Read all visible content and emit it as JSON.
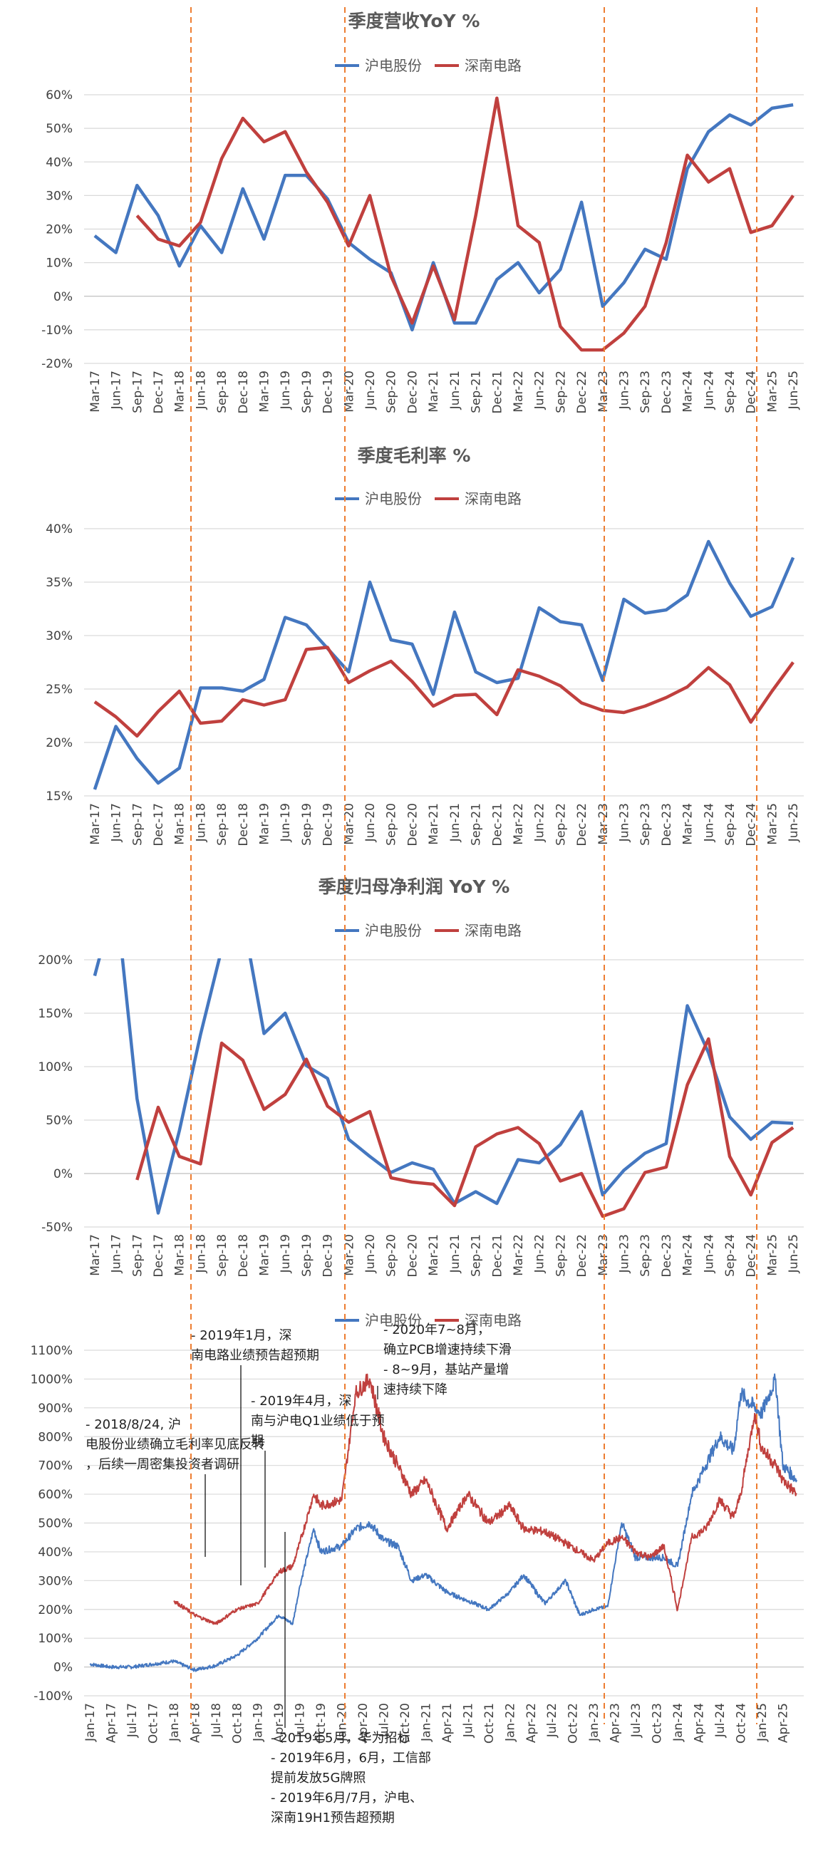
{
  "colors": {
    "hudian": "#4477c0",
    "shennan": "#c0403e",
    "event": "#ed7d31",
    "grid": "#d9d9d9"
  },
  "legend": {
    "hudian": "沪电股份",
    "shennan": "深南电路"
  },
  "chart_data": [
    {
      "type": "line",
      "title": "季度营收YoY %",
      "categories": [
        "Mar-17",
        "Jun-17",
        "Sep-17",
        "Dec-17",
        "Mar-18",
        "Jun-18",
        "Sep-18",
        "Dec-18",
        "Mar-19",
        "Jun-19",
        "Sep-19",
        "Dec-19",
        "Mar-20",
        "Jun-20",
        "Sep-20",
        "Dec-20",
        "Mar-21",
        "Jun-21",
        "Sep-21",
        "Dec-21",
        "Mar-22",
        "Jun-22",
        "Sep-22",
        "Dec-22",
        "Mar-23",
        "Jun-23",
        "Sep-23",
        "Dec-23",
        "Mar-24",
        "Jun-24",
        "Sep-24",
        "Dec-24",
        "Mar-25",
        "Jun-25"
      ],
      "ylim": [
        -20,
        60
      ],
      "yticks": [
        -20,
        -10,
        0,
        10,
        20,
        30,
        40,
        50,
        60
      ],
      "ytick_labels": [
        "-20%",
        "-10%",
        "0%",
        "10%",
        "20%",
        "30%",
        "40%",
        "50%",
        "60%"
      ],
      "grid": true,
      "legend_position": "top-center",
      "series": [
        {
          "name": "沪电股份",
          "values": [
            18,
            13,
            33,
            24,
            9,
            21,
            13,
            32,
            17,
            36,
            36,
            29,
            16,
            11,
            7,
            -10,
            10,
            -8,
            -8,
            5,
            10,
            1,
            8,
            28,
            -3,
            4,
            14,
            11,
            38,
            49,
            54,
            51,
            56,
            57
          ]
        },
        {
          "name": "深南电路",
          "values": [
            null,
            null,
            24,
            17,
            15,
            22,
            41,
            53,
            46,
            49,
            37,
            28,
            15,
            30,
            6,
            -8,
            9,
            -7,
            24,
            59,
            21,
            16,
            -9,
            -16,
            -16,
            -11,
            -3,
            16,
            42,
            34,
            38,
            19,
            21,
            30
          ]
        }
      ]
    },
    {
      "type": "line",
      "title": "季度毛利率 %",
      "categories": [
        "Mar-17",
        "Jun-17",
        "Sep-17",
        "Dec-17",
        "Mar-18",
        "Jun-18",
        "Sep-18",
        "Dec-18",
        "Mar-19",
        "Jun-19",
        "Sep-19",
        "Dec-19",
        "Mar-20",
        "Jun-20",
        "Sep-20",
        "Dec-20",
        "Mar-21",
        "Jun-21",
        "Sep-21",
        "Dec-21",
        "Mar-22",
        "Jun-22",
        "Sep-22",
        "Dec-22",
        "Mar-23",
        "Jun-23",
        "Sep-23",
        "Dec-23",
        "Mar-24",
        "Jun-24",
        "Sep-24",
        "Dec-24",
        "Mar-25",
        "Jun-25"
      ],
      "ylim": [
        15,
        40
      ],
      "yticks": [
        15,
        20,
        25,
        30,
        35,
        40
      ],
      "ytick_labels": [
        "15%",
        "20%",
        "25%",
        "30%",
        "35%",
        "40%"
      ],
      "grid": true,
      "legend_position": "top-center",
      "series": [
        {
          "name": "沪电股份",
          "values": [
            15.6,
            21.5,
            18.5,
            16.2,
            17.6,
            25.1,
            25.1,
            24.8,
            25.9,
            31.7,
            31.0,
            28.8,
            26.6,
            35.0,
            29.6,
            29.2,
            24.5,
            32.2,
            26.6,
            25.6,
            26.0,
            32.6,
            31.3,
            31.0,
            25.8,
            33.4,
            32.1,
            32.4,
            33.8,
            38.8,
            34.9,
            31.8,
            32.7,
            37.3
          ]
        },
        {
          "name": "深南电路",
          "values": [
            23.8,
            22.4,
            20.6,
            22.9,
            24.8,
            21.8,
            22.0,
            24.0,
            23.5,
            24.0,
            28.7,
            28.9,
            25.6,
            26.7,
            27.6,
            25.7,
            23.4,
            24.4,
            24.5,
            22.6,
            26.8,
            26.2,
            25.3,
            23.7,
            23.0,
            22.8,
            23.4,
            24.2,
            25.2,
            27.0,
            25.4,
            21.9,
            24.8,
            27.5
          ]
        }
      ]
    },
    {
      "type": "line",
      "title": "季度归母净利润 YoY %",
      "categories": [
        "Mar-17",
        "Jun-17",
        "Sep-17",
        "Dec-17",
        "Mar-18",
        "Jun-18",
        "Sep-18",
        "Dec-18",
        "Mar-19",
        "Jun-19",
        "Sep-19",
        "Dec-19",
        "Mar-20",
        "Jun-20",
        "Sep-20",
        "Dec-20",
        "Mar-21",
        "Jun-21",
        "Sep-21",
        "Dec-21",
        "Mar-22",
        "Jun-22",
        "Sep-22",
        "Dec-22",
        "Mar-23",
        "Jun-23",
        "Sep-23",
        "Dec-23",
        "Mar-24",
        "Jun-24",
        "Sep-24",
        "Dec-24",
        "Mar-25",
        "Jun-25"
      ],
      "ylim": [
        -50,
        200
      ],
      "yticks": [
        -50,
        0,
        50,
        100,
        150,
        200
      ],
      "ytick_labels": [
        "-50%",
        "0%",
        "50%",
        "100%",
        "150%",
        "200%"
      ],
      "grid": true,
      "legend_position": "top-center",
      "series": [
        {
          "name": "沪电股份",
          "values": [
            185,
            260,
            70,
            -37,
            40,
            130,
            210,
            240,
            131,
            150,
            101,
            89,
            32,
            16,
            1,
            10,
            4,
            -28,
            -17,
            -28,
            13,
            10,
            27,
            58,
            -20,
            3,
            19,
            28,
            157,
            113,
            53,
            32,
            48,
            47
          ]
        },
        {
          "name": "深南电路",
          "values": [
            null,
            null,
            -6,
            62,
            16,
            9,
            122,
            106,
            60,
            74,
            107,
            63,
            48,
            58,
            -4,
            -8,
            -10,
            -30,
            25,
            37,
            43,
            28,
            -7,
            0,
            -40,
            -33,
            1,
            6,
            83,
            126,
            16,
            -20,
            29,
            43
          ]
        }
      ]
    },
    {
      "type": "line",
      "title": "",
      "x_tick_labels": [
        "Jan-17",
        "Apr-17",
        "Jul-17",
        "Oct-17",
        "Jan-18",
        "Apr-18",
        "Jul-18",
        "Oct-18",
        "Jan-19",
        "Apr-19",
        "Jul-19",
        "Oct-19",
        "Jan-20",
        "Apr-20",
        "Jul-20",
        "Oct-20",
        "Jan-21",
        "Apr-21",
        "Jul-21",
        "Oct-21",
        "Jan-22",
        "Apr-22",
        "Jul-22",
        "Oct-22",
        "Jan-23",
        "Apr-23",
        "Jul-23",
        "Oct-23",
        "Jan-24",
        "Apr-24",
        "Jul-24",
        "Oct-24",
        "Jan-25",
        "Apr-25"
      ],
      "x_range": [
        "2017-01",
        "2025-06"
      ],
      "ylim": [
        -100,
        1100
      ],
      "yticks": [
        -100,
        0,
        100,
        200,
        300,
        400,
        500,
        600,
        700,
        800,
        900,
        1000,
        1100
      ],
      "ytick_labels": [
        "-100%",
        "0%",
        "100%",
        "200%",
        "300%",
        "400%",
        "500%",
        "600%",
        "700%",
        "800%",
        "900%",
        "1000%",
        "1100%"
      ],
      "grid": true,
      "legend_position": "top-center",
      "series": [
        {
          "name": "沪电股份",
          "x": [
            "2017-01",
            "2017-04",
            "2017-07",
            "2017-10",
            "2018-01",
            "2018-04",
            "2018-07",
            "2018-10",
            "2019-01",
            "2019-04",
            "2019-06",
            "2019-07",
            "2019-09",
            "2019-10",
            "2020-01",
            "2020-03",
            "2020-05",
            "2020-07",
            "2020-09",
            "2020-11",
            "2021-01",
            "2021-04",
            "2021-07",
            "2021-10",
            "2022-01",
            "2022-03",
            "2022-06",
            "2022-09",
            "2022-11",
            "2023-01",
            "2023-03",
            "2023-05",
            "2023-07",
            "2023-09",
            "2023-11",
            "2024-01",
            "2024-03",
            "2024-05",
            "2024-07",
            "2024-09",
            "2024-10",
            "2024-12",
            "2025-01",
            "2025-03",
            "2025-04",
            "2025-06"
          ],
          "values": [
            10,
            0,
            0,
            10,
            20,
            -10,
            5,
            40,
            100,
            180,
            150,
            280,
            480,
            400,
            420,
            480,
            500,
            440,
            420,
            300,
            320,
            260,
            230,
            200,
            260,
            320,
            220,
            300,
            180,
            200,
            210,
            500,
            380,
            380,
            380,
            350,
            600,
            700,
            800,
            750,
            950,
            900,
            880,
            1000,
            700,
            650
          ]
        },
        {
          "name": "深南电路",
          "x": [
            "2017-01",
            "2017-04",
            "2017-07",
            "2017-10",
            "2017-12",
            "2018-01",
            "2018-04",
            "2018-07",
            "2018-10",
            "2019-01",
            "2019-04",
            "2019-06",
            "2019-07",
            "2019-09",
            "2019-10",
            "2020-01",
            "2020-03",
            "2020-05",
            "2020-07",
            "2020-09",
            "2020-11",
            "2021-01",
            "2021-04",
            "2021-07",
            "2021-10",
            "2022-01",
            "2022-03",
            "2022-06",
            "2022-09",
            "2022-11",
            "2023-01",
            "2023-03",
            "2023-05",
            "2023-07",
            "2023-09",
            "2023-11",
            "2024-01",
            "2024-03",
            "2024-05",
            "2024-07",
            "2024-09",
            "2024-10",
            "2024-12",
            "2025-01",
            "2025-03",
            "2025-04",
            "2025-06"
          ],
          "values": [
            null,
            null,
            null,
            null,
            null,
            230,
            180,
            150,
            200,
            220,
            330,
            350,
            430,
            600,
            560,
            580,
            950,
            1000,
            800,
            700,
            600,
            650,
            480,
            600,
            500,
            560,
            480,
            470,
            430,
            400,
            370,
            430,
            450,
            400,
            380,
            420,
            200,
            450,
            480,
            580,
            520,
            600,
            880,
            760,
            700,
            650,
            600
          ]
        }
      ],
      "annotations": [
        {
          "label": "- 2018/8/24, 沪电股份业绩确立毛利率见底反转，后续一周密集投资者调研",
          "x": "2018-08"
        },
        {
          "label": "- 2019年1月，深南电路业绩预告超预期",
          "x": "2019-01"
        },
        {
          "label": "- 2019年4月，深南与沪电Q1业绩低于预期",
          "x": "2019-04"
        },
        {
          "label": "- 2019年5月，华为招标\n- 2019年6月，6月，工信部提前发放5G牌照\n- 2019年6月/7月，沪电、深南19H1预告超预期",
          "x": "2019-06"
        },
        {
          "label": "- 2020年7~8月，确立PCB增速持续下滑\n- 8~9月，基站产量增速持续下降",
          "x": "2020-07"
        }
      ]
    }
  ]
}
